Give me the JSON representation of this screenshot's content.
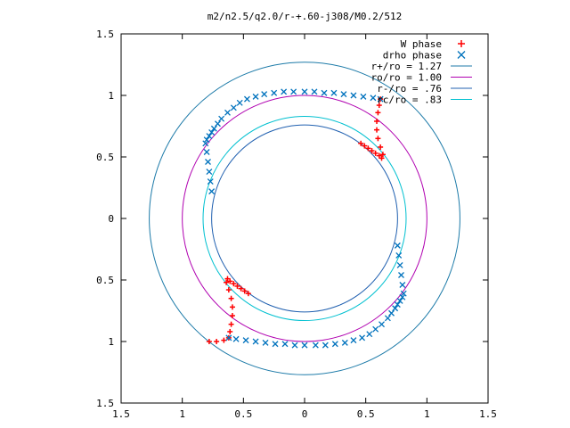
{
  "chart_data": {
    "type": "scatter",
    "title": "m2/n2.5/q2.0/r-+.60-j308/M0.2/512",
    "xlabel": "",
    "ylabel": "",
    "xlim": [
      -1.5,
      1.5
    ],
    "ylim": [
      -1.5,
      1.5
    ],
    "grid": false,
    "legend_position": "top-right",
    "x_ticks": [
      -1.5,
      -1,
      -0.5,
      0,
      0.5,
      1,
      1.5
    ],
    "x_tick_labels": [
      "1.5",
      "1",
      "0.5",
      "0",
      "0.5",
      "1",
      "1.5"
    ],
    "y_ticks": [
      1.5,
      1,
      0.5,
      0,
      -0.5,
      -1,
      -1.5
    ],
    "y_tick_labels": [
      "1.5",
      "1",
      "0.5",
      "0",
      "0.5",
      "1",
      "1.5"
    ],
    "series": [
      {
        "name": "W phase",
        "marker": "plus",
        "color": "#ff0000",
        "x": [
          0.46,
          0.49,
          0.52,
          0.55,
          0.58,
          0.61,
          0.63,
          0.64,
          0.62,
          0.6,
          0.59,
          0.59,
          0.6,
          0.61,
          0.62,
          -0.46,
          -0.49,
          -0.52,
          -0.55,
          -0.58,
          -0.61,
          -0.63,
          -0.64,
          -0.62,
          -0.6,
          -0.59,
          -0.59,
          -0.6,
          -0.61,
          -0.62,
          -0.66,
          -0.72,
          -0.78
        ],
        "y": [
          0.61,
          0.59,
          0.57,
          0.55,
          0.53,
          0.51,
          0.49,
          0.52,
          0.58,
          0.65,
          0.72,
          0.79,
          0.86,
          0.92,
          0.97,
          -0.61,
          -0.59,
          -0.57,
          -0.55,
          -0.53,
          -0.51,
          -0.49,
          -0.52,
          -0.58,
          -0.65,
          -0.72,
          -0.79,
          -0.86,
          -0.92,
          -0.97,
          -0.99,
          -1.0,
          -1.0
        ]
      },
      {
        "name": "drho phase",
        "marker": "cross",
        "color": "#0072bd",
        "x": [
          -0.76,
          -0.77,
          -0.78,
          -0.79,
          -0.8,
          -0.81,
          -0.8,
          -0.78,
          -0.76,
          -0.74,
          -0.71,
          -0.68,
          -0.63,
          -0.58,
          -0.53,
          -0.47,
          -0.4,
          -0.33,
          -0.25,
          -0.17,
          -0.09,
          0.0,
          0.08,
          0.16,
          0.24,
          0.32,
          0.4,
          0.48,
          0.56,
          0.62,
          0.76,
          0.77,
          0.78,
          0.79,
          0.8,
          0.81,
          0.8,
          0.78,
          0.76,
          0.74,
          0.71,
          0.68,
          0.63,
          0.58,
          0.53,
          0.47,
          0.4,
          0.33,
          0.25,
          0.17,
          0.09,
          0.0,
          -0.08,
          -0.16,
          -0.24,
          -0.32,
          -0.4,
          -0.48,
          -0.56,
          -0.62
        ],
        "y": [
          0.22,
          0.3,
          0.38,
          0.46,
          0.54,
          0.61,
          0.64,
          0.67,
          0.7,
          0.73,
          0.77,
          0.81,
          0.86,
          0.9,
          0.94,
          0.97,
          0.99,
          1.01,
          1.02,
          1.03,
          1.03,
          1.03,
          1.03,
          1.02,
          1.02,
          1.01,
          1.0,
          0.99,
          0.98,
          0.97,
          -0.22,
          -0.3,
          -0.38,
          -0.46,
          -0.54,
          -0.61,
          -0.64,
          -0.67,
          -0.7,
          -0.73,
          -0.77,
          -0.81,
          -0.86,
          -0.9,
          -0.94,
          -0.97,
          -0.99,
          -1.01,
          -1.02,
          -1.03,
          -1.03,
          -1.03,
          -1.03,
          -1.02,
          -1.02,
          -1.01,
          -1.0,
          -0.99,
          -0.98,
          -0.97
        ]
      }
    ],
    "circles": [
      {
        "name": "r+/ro = 1.27",
        "r": 1.27,
        "color": "#1c7aa8"
      },
      {
        "name": "ro/ro = 1.00",
        "r": 1.0,
        "color": "#b000b0"
      },
      {
        "name": "r-/ro = .76",
        "r": 0.76,
        "color": "#2060b0"
      },
      {
        "name": "rc/ro = .83",
        "r": 0.83,
        "color": "#00c0d0"
      }
    ]
  }
}
